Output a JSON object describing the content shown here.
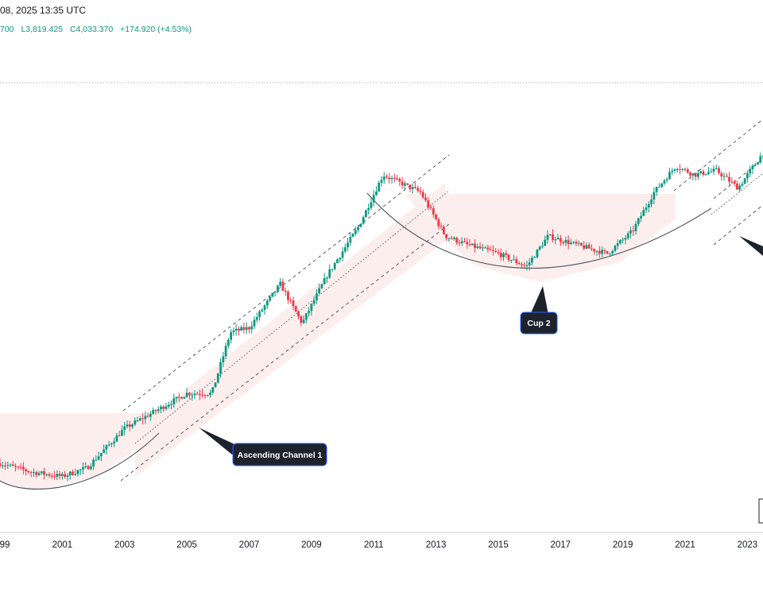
{
  "header": {
    "date_time": "08, 2025 13:35 UTC",
    "ohlc": {
      "open_fragment": "700",
      "low": "L3,819.425",
      "close": "C4,033.370",
      "change": "+174.920 (+4.53%)"
    }
  },
  "colors": {
    "up": "#089981",
    "down": "#f23645",
    "annotation_bg": "#1e222d",
    "annotation_border": "#2962ff",
    "shade": "#fdeeee",
    "channel": "#555a66"
  },
  "chart_data": {
    "type": "candlestick",
    "title": "",
    "xlabel": "",
    "ylabel": "",
    "x_tick_labels": [
      "99",
      "2001",
      "2003",
      "2005",
      "2007",
      "2009",
      "2011",
      "2013",
      "2015",
      "2017",
      "2019",
      "2021",
      "2023"
    ],
    "x_range": [
      1999,
      2023.5
    ],
    "y_range_relative": [
      0,
      1
    ],
    "price_anchor_points": [
      {
        "year": 1999.0,
        "level": 0.14
      },
      {
        "year": 2000.0,
        "level": 0.12
      },
      {
        "year": 2001.0,
        "level": 0.11
      },
      {
        "year": 2001.8,
        "level": 0.13
      },
      {
        "year": 2003.0,
        "level": 0.22
      },
      {
        "year": 2004.0,
        "level": 0.26
      },
      {
        "year": 2005.0,
        "level": 0.3
      },
      {
        "year": 2005.8,
        "level": 0.3
      },
      {
        "year": 2006.4,
        "level": 0.44
      },
      {
        "year": 2007.0,
        "level": 0.45
      },
      {
        "year": 2008.0,
        "level": 0.55
      },
      {
        "year": 2008.7,
        "level": 0.46
      },
      {
        "year": 2009.5,
        "level": 0.57
      },
      {
        "year": 2010.5,
        "level": 0.68
      },
      {
        "year": 2011.3,
        "level": 0.8
      },
      {
        "year": 2011.9,
        "level": 0.78
      },
      {
        "year": 2012.5,
        "level": 0.76
      },
      {
        "year": 2013.3,
        "level": 0.66
      },
      {
        "year": 2014.0,
        "level": 0.64
      },
      {
        "year": 2015.0,
        "level": 0.62
      },
      {
        "year": 2015.9,
        "level": 0.59
      },
      {
        "year": 2016.6,
        "level": 0.66
      },
      {
        "year": 2017.5,
        "level": 0.64
      },
      {
        "year": 2018.5,
        "level": 0.62
      },
      {
        "year": 2019.3,
        "level": 0.67
      },
      {
        "year": 2020.0,
        "level": 0.76
      },
      {
        "year": 2020.7,
        "level": 0.82
      },
      {
        "year": 2021.3,
        "level": 0.8
      },
      {
        "year": 2022.0,
        "level": 0.81
      },
      {
        "year": 2022.7,
        "level": 0.77
      },
      {
        "year": 2023.5,
        "level": 0.85
      }
    ],
    "annotations": [
      {
        "text": "Ascending Channel 1",
        "pattern": "ascending channel"
      },
      {
        "text": "Cup 2",
        "pattern": "cup"
      }
    ]
  }
}
